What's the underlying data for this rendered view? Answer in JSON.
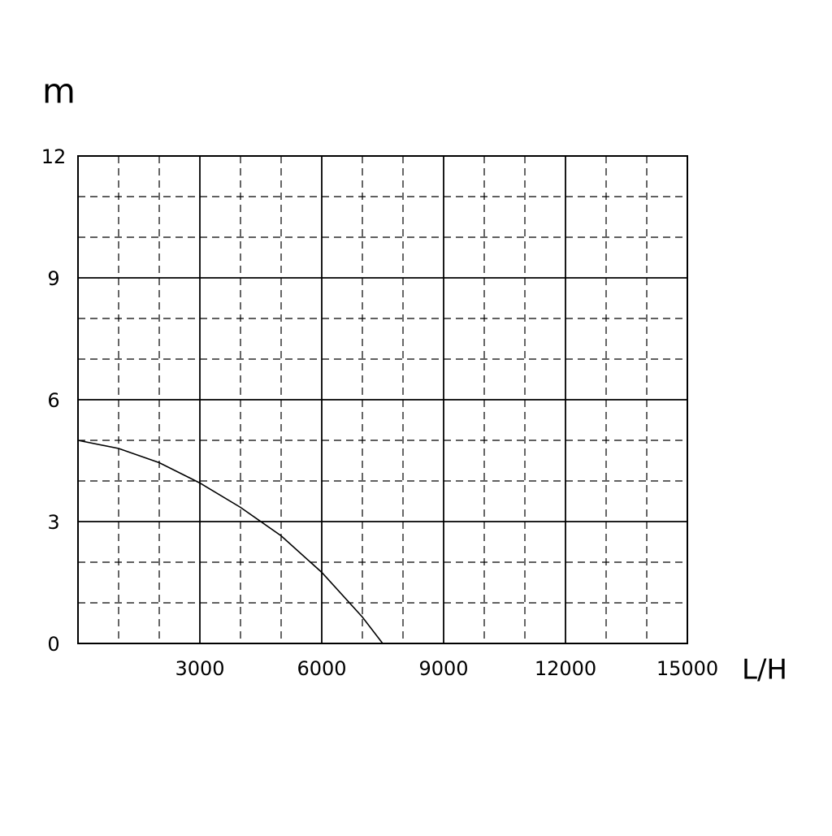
{
  "chart_data": {
    "type": "line",
    "y_label": "m",
    "x_label": "L/H",
    "x": [
      0,
      1000,
      2000,
      3000,
      4000,
      5000,
      6000,
      7000,
      7500
    ],
    "series": [
      {
        "color": "#000000",
        "values": [
          5,
          4.8,
          4.45,
          3.95,
          3.35,
          2.65,
          1.75,
          0.65,
          0
        ]
      }
    ],
    "xlim": [
      0,
      15000
    ],
    "xticks": [
      3000,
      6000,
      9000,
      12000,
      15000
    ],
    "xminorticks": [
      1000,
      2000,
      4000,
      5000,
      7000,
      8000,
      10000,
      11000,
      13000,
      14000
    ],
    "ylim": [
      0,
      12
    ],
    "yticks": [
      0,
      3,
      6,
      9,
      12
    ],
    "yminorticks": [
      1,
      2,
      4,
      5,
      7,
      8,
      10,
      11
    ],
    "grid": true
  }
}
